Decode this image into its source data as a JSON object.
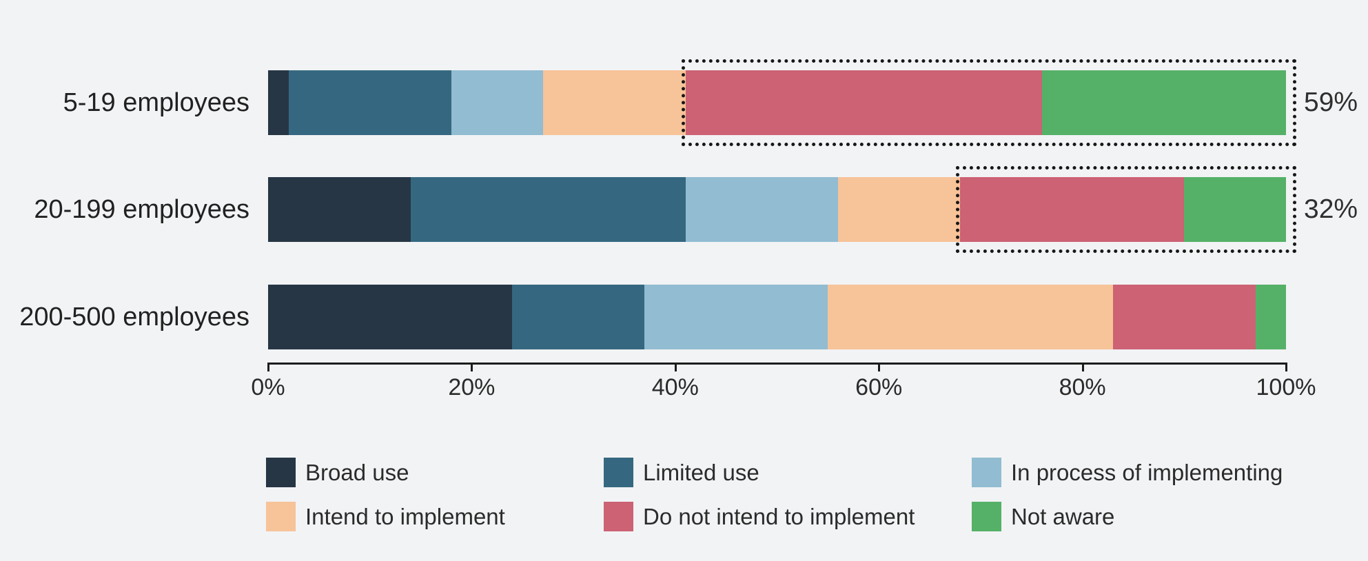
{
  "colors": {
    "background": "#f2f3f5",
    "text": "#242424",
    "axis": "#1c1c1c",
    "highlight_border": "#171717"
  },
  "chart_data": {
    "type": "bar",
    "orientation": "horizontal",
    "stacked": true,
    "title": "",
    "xlabel": "",
    "ylabel": "",
    "grid": false,
    "legend_position": "bottom",
    "categories": [
      "5-19 employees",
      "20-199 employees",
      "200-500 employees"
    ],
    "series": [
      {
        "name": "Broad use",
        "color": "#263645",
        "values": [
          2,
          14,
          24
        ]
      },
      {
        "name": "Limited use",
        "color": "#356880",
        "values": [
          16,
          27,
          13
        ]
      },
      {
        "name": "In process of implementing",
        "color": "#92bcd1",
        "values": [
          9,
          15,
          18
        ]
      },
      {
        "name": "Intend to implement",
        "color": "#f7c399",
        "values": [
          14,
          12,
          28
        ]
      },
      {
        "name": "Do not intend to implement",
        "color": "#cc6274",
        "values": [
          35,
          22,
          14
        ]
      },
      {
        "name": "Not aware",
        "color": "#55b168",
        "values": [
          24,
          10,
          3
        ]
      }
    ],
    "x_axis": {
      "min": 0,
      "max": 100,
      "tick_labels": [
        "0%",
        "20%",
        "40%",
        "60%",
        "80%",
        "100%"
      ],
      "tick_values": [
        0,
        20,
        40,
        60,
        80,
        100
      ]
    },
    "annotations": [
      {
        "category_index": 0,
        "label": "59%",
        "value": 59,
        "covers_series": [
          "Do not intend to implement",
          "Not aware"
        ],
        "style": "dotted-box"
      },
      {
        "category_index": 1,
        "label": "32%",
        "value": 32,
        "covers_series": [
          "Do not intend to implement",
          "Not aware"
        ],
        "style": "dotted-box"
      }
    ]
  }
}
